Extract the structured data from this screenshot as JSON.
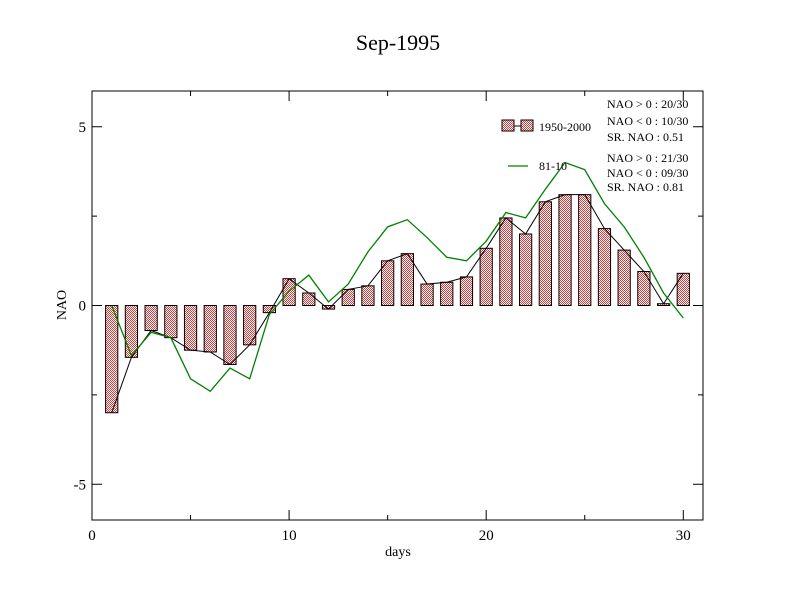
{
  "chart_data": {
    "type": "bar",
    "title": "Sep-1995",
    "xlabel": "days",
    "ylabel": "NAO",
    "xlim": [
      0,
      31
    ],
    "ylim": [
      -6,
      6
    ],
    "x_ticks": [
      0,
      10,
      20,
      30
    ],
    "y_ticks": [
      -5,
      0,
      5
    ],
    "x_tick_labels": [
      "0",
      "10",
      "20",
      "30"
    ],
    "y_tick_labels": [
      "-5",
      "0",
      "5"
    ],
    "grid": false,
    "legend_position": "top-right",
    "x": [
      1,
      2,
      3,
      4,
      5,
      6,
      7,
      8,
      9,
      10,
      11,
      12,
      13,
      14,
      15,
      16,
      17,
      18,
      19,
      20,
      21,
      22,
      23,
      24,
      25,
      26,
      27,
      28,
      29,
      30
    ],
    "series": [
      {
        "name": "1950-2000",
        "kind": "bar",
        "color": "#e06666",
        "values": [
          -3.0,
          -1.45,
          -0.7,
          -0.9,
          -1.25,
          -1.3,
          -1.65,
          -1.1,
          -0.2,
          0.75,
          0.35,
          -0.1,
          0.45,
          0.55,
          1.25,
          1.45,
          0.6,
          0.65,
          0.8,
          1.6,
          2.45,
          2.0,
          2.9,
          3.1,
          3.1,
          2.15,
          1.55,
          0.95,
          0.05,
          0.9
        ]
      },
      {
        "name": "81-10",
        "kind": "line",
        "color": "#008000",
        "values": [
          0.0,
          -1.4,
          -0.75,
          -0.9,
          -2.05,
          -2.4,
          -1.75,
          -2.05,
          -0.25,
          0.4,
          0.85,
          0.1,
          0.6,
          1.5,
          2.2,
          2.4,
          1.9,
          1.35,
          1.25,
          1.8,
          2.6,
          2.45,
          3.25,
          4.0,
          3.8,
          2.85,
          2.2,
          1.35,
          0.35,
          -0.35
        ]
      }
    ],
    "annotations": {
      "group1": [
        "NAO > 0 : 20/30",
        "NAO < 0 : 10/30",
        "SR. NAO :  0.51"
      ],
      "group2": [
        "NAO > 0 : 21/30",
        "NAO < 0 : 09/30",
        "SR. NAO :  0.81"
      ]
    }
  }
}
